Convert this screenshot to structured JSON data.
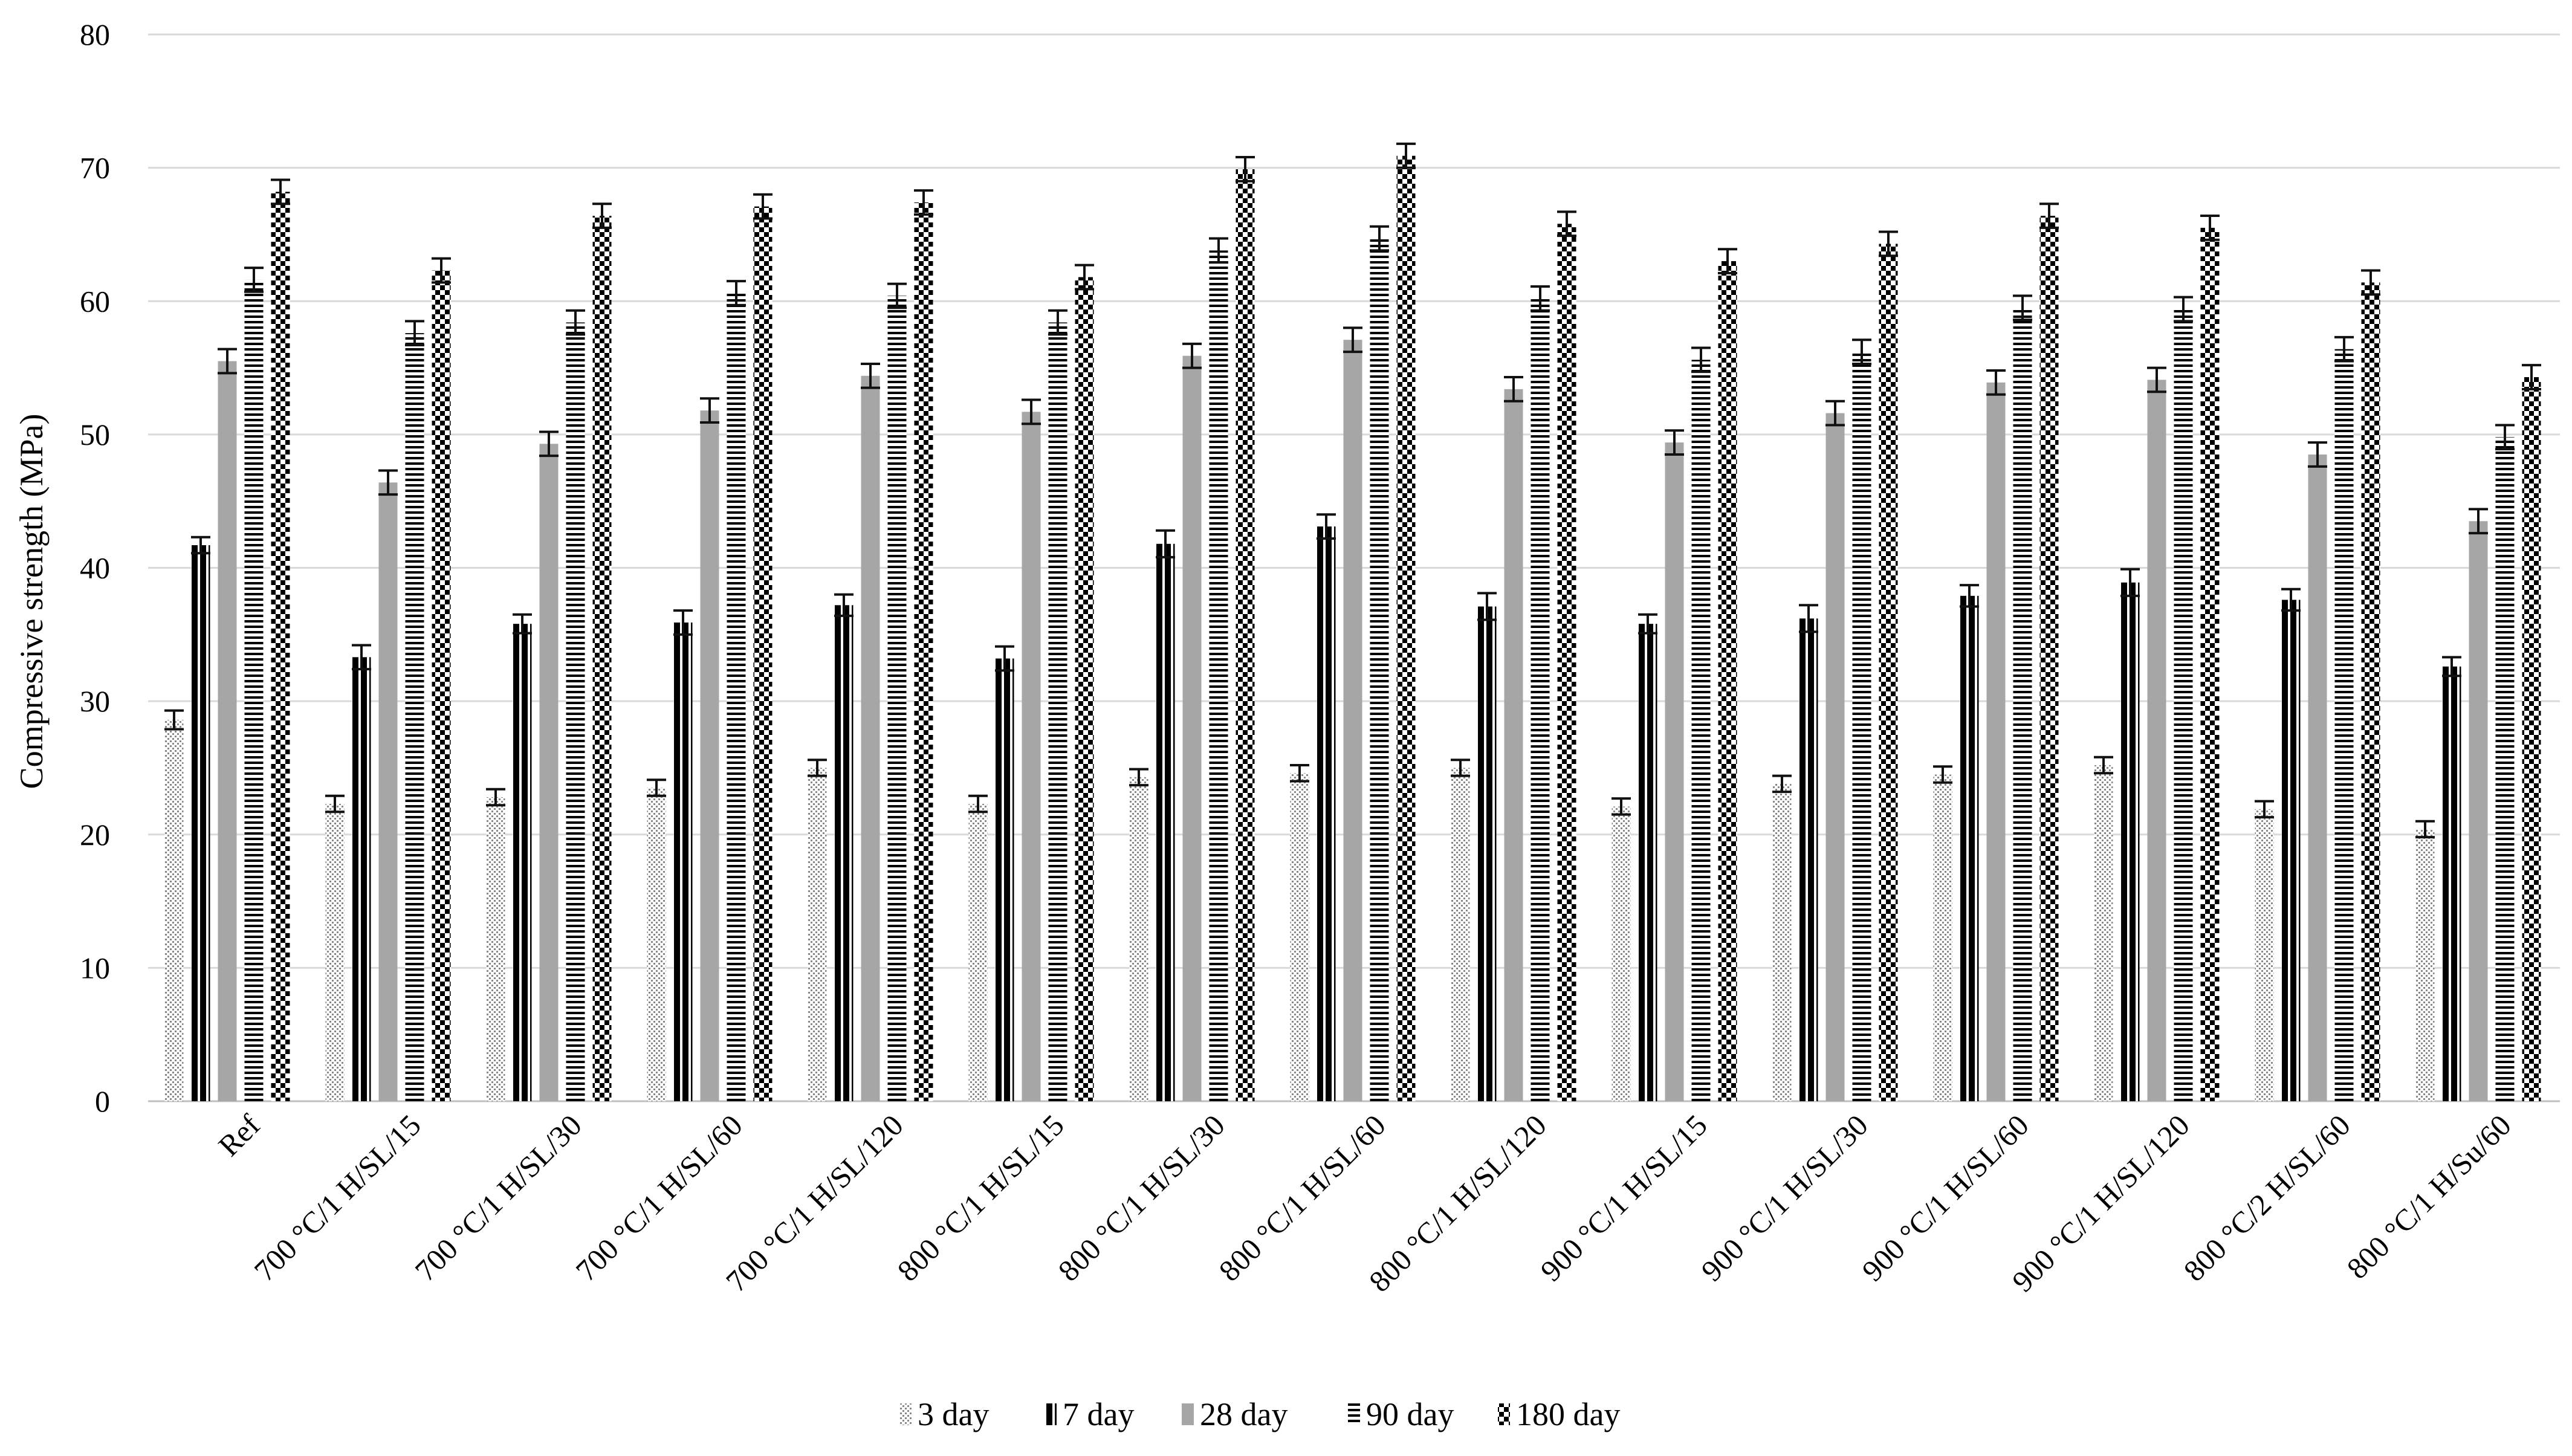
{
  "chart_data": {
    "type": "bar",
    "title": "",
    "xlabel": "",
    "ylabel": "Compressive strength (MPa)",
    "ylim": [
      0,
      80
    ],
    "yticks": [
      0,
      10,
      20,
      30,
      40,
      50,
      60,
      70,
      80
    ],
    "grid": true,
    "legend_position": "bottom",
    "categories": [
      "Ref",
      "700 °C/1 H/SL/15",
      "700 °C/1 H/SL/30",
      "700 °C/1 H/SL/60",
      "700 °C/1 H/SL/120",
      "800 °C/1 H/SL/15",
      "800 °C/1 H/SL/30",
      "800 °C/1 H/SL/60",
      "800 °C/1 H/SL/120",
      "900 °C/1 H/SL/15",
      "900 °C/1 H/SL/30",
      "900 °C/1 H/SL/60",
      "900 °C/1 H/SL/120",
      "800 °C/2 H/SL/60",
      "800 °C/1 H/Su/60"
    ],
    "series": [
      {
        "name": "3 day",
        "pattern": "dots",
        "values": [
          28.6,
          22.3,
          22.8,
          23.5,
          25.0,
          22.3,
          24.3,
          24.6,
          25.0,
          22.1,
          23.8,
          24.5,
          25.2,
          21.9,
          20.4
        ],
        "errors": [
          0.7,
          0.6,
          0.6,
          0.6,
          0.6,
          0.6,
          0.6,
          0.6,
          0.6,
          0.6,
          0.6,
          0.6,
          0.6,
          0.6,
          0.6
        ]
      },
      {
        "name": "7 day",
        "pattern": "vertical",
        "values": [
          41.7,
          33.3,
          35.8,
          35.9,
          37.2,
          33.2,
          41.8,
          43.1,
          37.1,
          35.8,
          36.2,
          37.9,
          38.9,
          37.6,
          32.6
        ],
        "errors": [
          0.6,
          0.9,
          0.7,
          0.9,
          0.8,
          0.9,
          1.0,
          0.9,
          1.0,
          0.7,
          1.0,
          0.8,
          1.0,
          0.8,
          0.7
        ]
      },
      {
        "name": "28 day",
        "pattern": "solid",
        "values": [
          55.5,
          46.4,
          49.3,
          51.8,
          54.4,
          51.7,
          55.9,
          57.1,
          53.4,
          49.4,
          51.6,
          53.9,
          54.1,
          48.5,
          43.5
        ],
        "errors": [
          0.9,
          0.9,
          0.9,
          0.9,
          0.9,
          0.9,
          0.9,
          0.9,
          0.9,
          0.9,
          0.9,
          0.9,
          0.9,
          0.9,
          0.9
        ]
      },
      {
        "name": "90 day",
        "pattern": "horizontal",
        "values": [
          61.6,
          57.6,
          58.4,
          60.6,
          60.4,
          58.4,
          63.8,
          64.7,
          60.2,
          55.6,
          56.2,
          59.5,
          59.4,
          56.4,
          49.8
        ],
        "errors": [
          0.9,
          0.9,
          0.9,
          0.9,
          0.9,
          0.9,
          0.9,
          0.9,
          0.9,
          0.9,
          0.9,
          0.9,
          0.9,
          0.9,
          0.9
        ]
      },
      {
        "name": "180 day",
        "pattern": "checker",
        "values": [
          68.2,
          62.3,
          66.4,
          67.1,
          67.4,
          61.8,
          69.9,
          70.9,
          65.8,
          63.0,
          64.3,
          66.4,
          65.5,
          61.4,
          54.3
        ],
        "errors": [
          0.9,
          0.9,
          0.9,
          0.9,
          0.9,
          0.9,
          0.9,
          0.9,
          0.9,
          0.9,
          0.9,
          0.9,
          0.9,
          0.9,
          0.9
        ]
      }
    ]
  }
}
